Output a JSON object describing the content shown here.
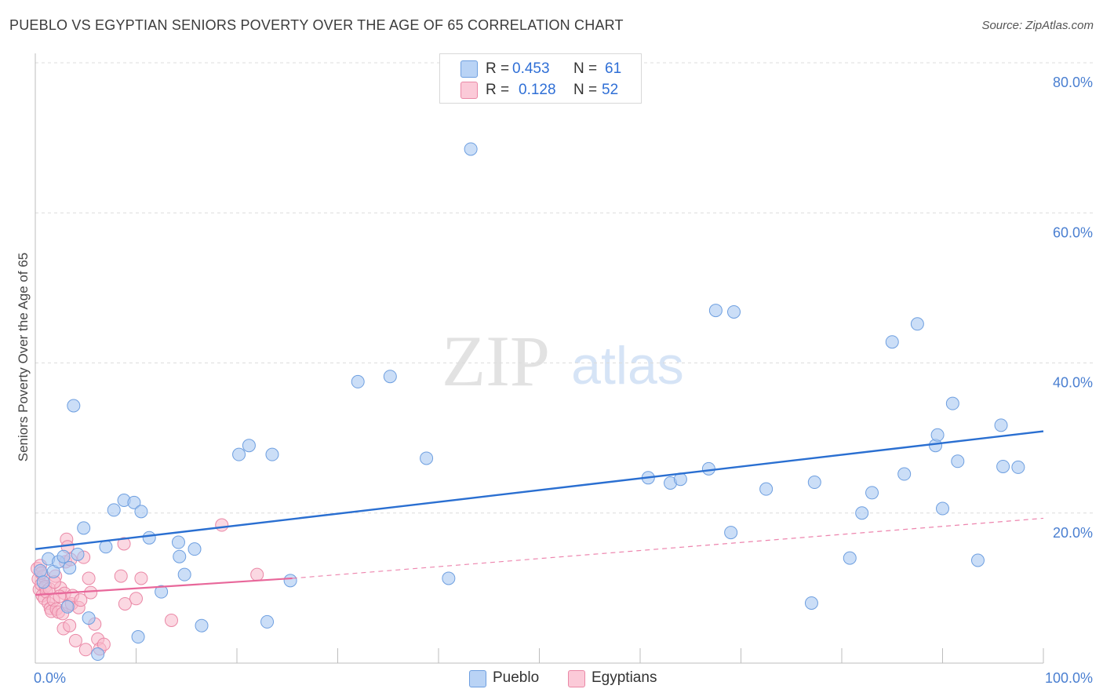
{
  "title": "PUEBLO VS EGYPTIAN SENIORS POVERTY OVER THE AGE OF 65 CORRELATION CHART",
  "source": "Source: ZipAtlas.com",
  "watermark": {
    "zip": "ZIP",
    "atlas": "atlas"
  },
  "legend_top": [
    {
      "r_label": "R =",
      "r_value": "0.453",
      "n_label": "N =",
      "n_value": "61",
      "color": "#a9c8f2"
    },
    {
      "r_label": "R =",
      "r_value": "0.128",
      "n_label": "N =",
      "n_value": "52",
      "color": "#f7b8cb"
    }
  ],
  "legend_bottom": [
    {
      "label": "Pueblo",
      "color": "#a9c8f2"
    },
    {
      "label": "Egyptians",
      "color": "#f7b8cb"
    }
  ],
  "chart_data": {
    "type": "scatter",
    "title": "PUEBLO VS EGYPTIAN SENIORS POVERTY OVER THE AGE OF 65 CORRELATION CHART",
    "xlabel": "",
    "ylabel": "Seniors Poverty Over the Age of 65",
    "xlim": [
      0,
      100
    ],
    "ylim": [
      0,
      80
    ],
    "x_tick_labels": [
      "0.0%",
      "100.0%"
    ],
    "y_ticks": [
      20,
      40,
      60,
      80
    ],
    "y_tick_labels": [
      "20.0%",
      "40.0%",
      "60.0%",
      "80.0%"
    ],
    "grid": true,
    "legend_position": "top-center",
    "colors": {
      "pueblo_point": "#a9c8f2",
      "pueblo_edge": "#6e9fe0",
      "pueblo_line": "#2a6fd1",
      "egypt_point": "#f7b8cb",
      "egypt_edge": "#ea88a6",
      "egypt_line": "#e8679a"
    },
    "series": [
      {
        "name": "Pueblo",
        "r": 0.453,
        "n": 61,
        "trend": {
          "x": [
            0,
            100
          ],
          "y": [
            15.2,
            30.9
          ],
          "style": "solid"
        },
        "points": [
          [
            0.5,
            12.3
          ],
          [
            0.8,
            10.8
          ],
          [
            1.3,
            13.9
          ],
          [
            1.8,
            12.2
          ],
          [
            2.3,
            13.5
          ],
          [
            2.8,
            14.2
          ],
          [
            3.2,
            7.5
          ],
          [
            3.4,
            12.7
          ],
          [
            3.8,
            34.3
          ],
          [
            4.2,
            14.5
          ],
          [
            4.8,
            18.0
          ],
          [
            5.3,
            6.0
          ],
          [
            7.0,
            15.5
          ],
          [
            7.8,
            20.4
          ],
          [
            8.8,
            21.7
          ],
          [
            9.8,
            21.4
          ],
          [
            10.5,
            20.2
          ],
          [
            10.2,
            3.5
          ],
          [
            11.3,
            16.7
          ],
          [
            12.5,
            9.5
          ],
          [
            14.2,
            16.1
          ],
          [
            14.3,
            14.2
          ],
          [
            14.8,
            11.8
          ],
          [
            15.8,
            15.2
          ],
          [
            16.5,
            5.0
          ],
          [
            20.2,
            27.8
          ],
          [
            21.2,
            29.0
          ],
          [
            23.5,
            27.8
          ],
          [
            23.0,
            5.5
          ],
          [
            25.3,
            11.0
          ],
          [
            32.0,
            37.5
          ],
          [
            35.2,
            38.2
          ],
          [
            38.8,
            27.3
          ],
          [
            41.0,
            11.3
          ],
          [
            43.2,
            68.5
          ],
          [
            6.2,
            1.2
          ],
          [
            60.8,
            24.7
          ],
          [
            63.0,
            24.0
          ],
          [
            64.0,
            24.5
          ],
          [
            66.8,
            25.9
          ],
          [
            69.0,
            17.4
          ],
          [
            67.5,
            47.0
          ],
          [
            69.3,
            46.8
          ],
          [
            72.5,
            23.2
          ],
          [
            77.0,
            8.0
          ],
          [
            77.3,
            24.1
          ],
          [
            80.8,
            14.0
          ],
          [
            82.0,
            20.0
          ],
          [
            83.0,
            22.7
          ],
          [
            85.0,
            42.8
          ],
          [
            86.2,
            25.2
          ],
          [
            87.5,
            45.2
          ],
          [
            89.3,
            29.0
          ],
          [
            89.5,
            30.4
          ],
          [
            90.0,
            20.6
          ],
          [
            91.0,
            34.6
          ],
          [
            91.5,
            26.9
          ],
          [
            93.5,
            13.7
          ],
          [
            95.8,
            31.7
          ],
          [
            96.0,
            26.2
          ],
          [
            97.5,
            26.1
          ]
        ]
      },
      {
        "name": "Egyptians",
        "r": 0.128,
        "n": 52,
        "trend": {
          "x": [
            0,
            25.5
          ],
          "y": [
            9.1,
            11.3
          ],
          "style": "solid",
          "extension": {
            "x": [
              25.5,
              100
            ],
            "y": [
              11.3,
              19.3
            ],
            "style": "dashed"
          }
        },
        "points": [
          [
            0.2,
            12.6
          ],
          [
            0.3,
            11.2
          ],
          [
            0.4,
            9.8
          ],
          [
            0.5,
            13.0
          ],
          [
            0.6,
            10.5
          ],
          [
            0.7,
            9.0
          ],
          [
            0.8,
            11.6
          ],
          [
            0.9,
            8.6
          ],
          [
            1.0,
            10.2
          ],
          [
            1.1,
            9.5
          ],
          [
            1.3,
            8.0
          ],
          [
            1.4,
            9.9
          ],
          [
            1.5,
            7.3
          ],
          [
            1.6,
            6.9
          ],
          [
            1.8,
            8.4
          ],
          [
            2.0,
            11.6
          ],
          [
            2.1,
            7.2
          ],
          [
            2.3,
            6.8
          ],
          [
            2.5,
            10.0
          ],
          [
            2.7,
            6.6
          ],
          [
            2.8,
            4.6
          ],
          [
            2.9,
            9.3
          ],
          [
            3.0,
            13.5
          ],
          [
            3.1,
            16.5
          ],
          [
            3.2,
            15.5
          ],
          [
            3.3,
            7.7
          ],
          [
            3.4,
            5.0
          ],
          [
            3.5,
            13.8
          ],
          [
            3.6,
            7.9
          ],
          [
            3.7,
            9.0
          ],
          [
            4.0,
            3.0
          ],
          [
            4.3,
            7.4
          ],
          [
            4.5,
            8.4
          ],
          [
            4.8,
            14.1
          ],
          [
            5.0,
            1.8
          ],
          [
            5.3,
            11.3
          ],
          [
            5.5,
            9.4
          ],
          [
            5.9,
            5.2
          ],
          [
            6.2,
            3.2
          ],
          [
            6.4,
            1.9
          ],
          [
            6.8,
            2.5
          ],
          [
            8.5,
            11.6
          ],
          [
            8.8,
            15.9
          ],
          [
            8.9,
            7.9
          ],
          [
            10.0,
            8.6
          ],
          [
            10.5,
            11.3
          ],
          [
            13.5,
            5.7
          ],
          [
            18.5,
            18.4
          ],
          [
            22.0,
            11.8
          ],
          [
            0.6,
            12.0
          ],
          [
            1.9,
            10.8
          ],
          [
            2.4,
            8.9
          ]
        ]
      }
    ]
  }
}
